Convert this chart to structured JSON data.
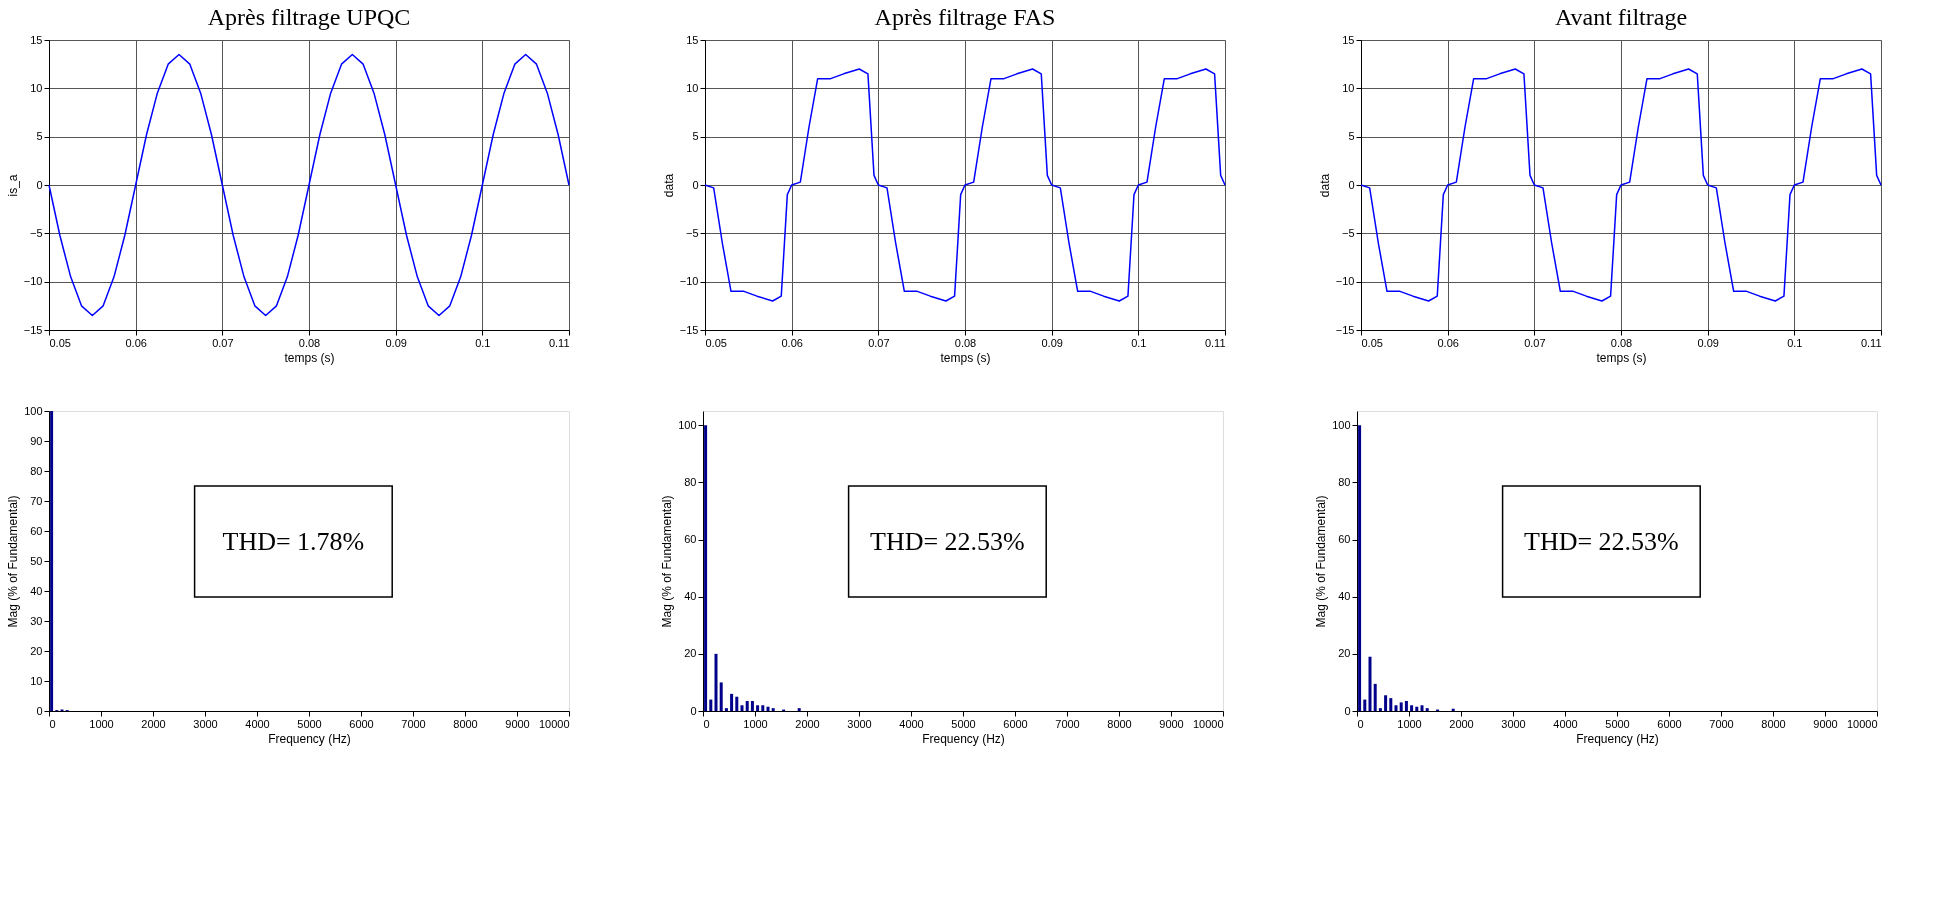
{
  "chart_data": [
    {
      "type": "line",
      "title": "Après filtrage UPQC",
      "xlabel": "temps (s)",
      "ylabel": "is_a",
      "xlim": [
        0.05,
        0.11
      ],
      "xticks": [
        0.05,
        0.06,
        0.07,
        0.08,
        0.09,
        0.1,
        0.11
      ],
      "ylim": [
        -15,
        15
      ],
      "yticks": [
        -15,
        -10,
        -5,
        0,
        5,
        10,
        15
      ],
      "grid": true,
      "series": [
        {
          "color": "#0000ff",
          "x": [
            0.05,
            0.05125,
            0.0525,
            0.05375,
            0.055,
            0.05625,
            0.0575,
            0.05875,
            0.06,
            0.06125,
            0.0625,
            0.06375,
            0.065,
            0.06625,
            0.0675,
            0.06875,
            0.07,
            0.07125,
            0.0725,
            0.07375,
            0.075,
            0.07625,
            0.0775,
            0.07875,
            0.08,
            0.08125,
            0.0825,
            0.08375,
            0.085,
            0.08625,
            0.0875,
            0.08875,
            0.09,
            0.09125,
            0.0925,
            0.09375,
            0.095,
            0.09625,
            0.0975,
            0.09875,
            0.1,
            0.10125,
            0.1025,
            0.10375,
            0.105,
            0.10625,
            0.1075,
            0.10875,
            0.11
          ],
          "values": [
            0,
            -5.2,
            -9.5,
            -12.5,
            -13.5,
            -12.5,
            -9.5,
            -5.2,
            0,
            5.2,
            9.5,
            12.5,
            13.5,
            12.5,
            9.5,
            5.2,
            0,
            -5.2,
            -9.5,
            -12.5,
            -13.5,
            -12.5,
            -9.5,
            -5.2,
            0,
            5.2,
            9.5,
            12.5,
            13.5,
            12.5,
            9.5,
            5.2,
            0,
            -5.2,
            -9.5,
            -12.5,
            -13.5,
            -12.5,
            -9.5,
            -5.2,
            0,
            5.2,
            9.5,
            12.5,
            13.5,
            12.5,
            9.5,
            5.2,
            0
          ]
        }
      ]
    },
    {
      "type": "line",
      "title": "Après filtrage FAS",
      "xlabel": "temps (s)",
      "ylabel": "data",
      "xlim": [
        0.05,
        0.11
      ],
      "xticks": [
        0.05,
        0.06,
        0.07,
        0.08,
        0.09,
        0.1,
        0.11
      ],
      "ylim": [
        -15,
        15
      ],
      "yticks": [
        -15,
        -10,
        -5,
        0,
        5,
        10,
        15
      ],
      "grid": true,
      "series": [
        {
          "color": "#0000ff",
          "x": [
            0.05,
            0.051,
            0.052,
            0.053,
            0.0545,
            0.056,
            0.0578,
            0.0588,
            0.0595,
            0.06,
            0.061,
            0.062,
            0.063,
            0.0645,
            0.066,
            0.0678,
            0.0688,
            0.0695,
            0.07,
            0.071,
            0.072,
            0.073,
            0.0745,
            0.076,
            0.0778,
            0.0788,
            0.0795,
            0.08,
            0.081,
            0.082,
            0.083,
            0.0845,
            0.086,
            0.0878,
            0.0888,
            0.0895,
            0.09,
            0.091,
            0.092,
            0.093,
            0.0945,
            0.096,
            0.0978,
            0.0988,
            0.0995,
            0.1,
            0.101,
            0.102,
            0.103,
            0.1045,
            0.106,
            0.1078,
            0.1088,
            0.1095,
            0.11
          ],
          "values": [
            0,
            -0.3,
            -6,
            -11,
            -11,
            -11.5,
            -12,
            -11.5,
            -1,
            0,
            0.3,
            6,
            11,
            11,
            11.5,
            12,
            11.5,
            1,
            0,
            -0.3,
            -6,
            -11,
            -11,
            -11.5,
            -12,
            -11.5,
            -1,
            0,
            0.3,
            6,
            11,
            11,
            11.5,
            12,
            11.5,
            1,
            0,
            -0.3,
            -6,
            -11,
            -11,
            -11.5,
            -12,
            -11.5,
            -1,
            0,
            0.3,
            6,
            11,
            11,
            11.5,
            12,
            11.5,
            1,
            0
          ]
        }
      ]
    },
    {
      "type": "line",
      "title": "Avant  filtrage",
      "xlabel": "temps (s)",
      "ylabel": "data",
      "xlim": [
        0.05,
        0.11
      ],
      "xticks": [
        0.05,
        0.06,
        0.07,
        0.08,
        0.09,
        0.1,
        0.11
      ],
      "ylim": [
        -15,
        15
      ],
      "yticks": [
        -15,
        -10,
        -5,
        0,
        5,
        10,
        15
      ],
      "grid": true,
      "series": [
        {
          "color": "#0000ff",
          "x": [
            0.05,
            0.051,
            0.052,
            0.053,
            0.0545,
            0.056,
            0.0578,
            0.0588,
            0.0595,
            0.06,
            0.061,
            0.062,
            0.063,
            0.0645,
            0.066,
            0.0678,
            0.0688,
            0.0695,
            0.07,
            0.071,
            0.072,
            0.073,
            0.0745,
            0.076,
            0.0778,
            0.0788,
            0.0795,
            0.08,
            0.081,
            0.082,
            0.083,
            0.0845,
            0.086,
            0.0878,
            0.0888,
            0.0895,
            0.09,
            0.091,
            0.092,
            0.093,
            0.0945,
            0.096,
            0.0978,
            0.0988,
            0.0995,
            0.1,
            0.101,
            0.102,
            0.103,
            0.1045,
            0.106,
            0.1078,
            0.1088,
            0.1095,
            0.11
          ],
          "values": [
            0,
            -0.3,
            -6,
            -11,
            -11,
            -11.5,
            -12,
            -11.5,
            -1,
            0,
            0.3,
            6,
            11,
            11,
            11.5,
            12,
            11.5,
            1,
            0,
            -0.3,
            -6,
            -11,
            -11,
            -11.5,
            -12,
            -11.5,
            -1,
            0,
            0.3,
            6,
            11,
            11,
            11.5,
            12,
            11.5,
            1,
            0,
            -0.3,
            -6,
            -11,
            -11,
            -11.5,
            -12,
            -11.5,
            -1,
            0,
            0.3,
            6,
            11,
            11,
            11.5,
            12,
            11.5,
            1,
            0
          ]
        }
      ]
    },
    {
      "type": "bar",
      "xlabel": "Frequency (Hz)",
      "ylabel": "Mag (% of Fundamental)",
      "xlim": [
        0,
        10000
      ],
      "xticks": [
        0,
        1000,
        2000,
        3000,
        4000,
        5000,
        6000,
        7000,
        8000,
        9000,
        10000
      ],
      "ylim": [
        0,
        100
      ],
      "yticks": [
        0,
        10,
        20,
        30,
        40,
        50,
        60,
        70,
        80,
        90,
        100
      ],
      "annotations": [
        "THD= 1.78%"
      ],
      "series": [
        {
          "color": "#00008b",
          "x": [
            50,
            150,
            250,
            350
          ],
          "values": [
            100,
            0.3,
            0.5,
            0.3
          ]
        }
      ]
    },
    {
      "type": "bar",
      "xlabel": "Frequency (Hz)",
      "ylabel": "Mag (% of Fundamental)",
      "xlim": [
        0,
        10000
      ],
      "xticks": [
        0,
        1000,
        2000,
        3000,
        4000,
        5000,
        6000,
        7000,
        8000,
        9000,
        10000
      ],
      "ylim": [
        0,
        105
      ],
      "yticks": [
        0,
        20,
        40,
        60,
        80,
        100
      ],
      "annotations": [
        "THD= 22.53%"
      ],
      "series": [
        {
          "color": "#00008b",
          "x": [
            50,
            150,
            250,
            350,
            450,
            550,
            650,
            750,
            850,
            950,
            1050,
            1150,
            1250,
            1350,
            1550,
            1850
          ],
          "values": [
            100,
            4,
            20,
            10,
            1,
            6,
            5,
            2,
            3.5,
            3.5,
            2,
            2,
            1.5,
            1,
            0.5,
            1
          ]
        }
      ]
    },
    {
      "type": "bar",
      "xlabel": "Frequency (Hz)",
      "ylabel": "Mag (% of Fundamental)",
      "xlim": [
        0,
        10000
      ],
      "xticks": [
        0,
        1000,
        2000,
        3000,
        4000,
        5000,
        6000,
        7000,
        8000,
        9000,
        10000
      ],
      "ylim": [
        0,
        105
      ],
      "yticks": [
        0,
        20,
        40,
        60,
        80,
        100
      ],
      "annotations": [
        "THD= 22.53%"
      ],
      "series": [
        {
          "color": "#00008b",
          "x": [
            50,
            150,
            250,
            350,
            450,
            550,
            650,
            750,
            850,
            950,
            1050,
            1150,
            1250,
            1350,
            1550,
            1850
          ],
          "values": [
            100,
            4,
            19,
            9.5,
            1,
            5.5,
            4.5,
            2,
            3,
            3.5,
            2,
            1.5,
            2,
            1,
            0.5,
            0.8
          ]
        }
      ]
    }
  ]
}
